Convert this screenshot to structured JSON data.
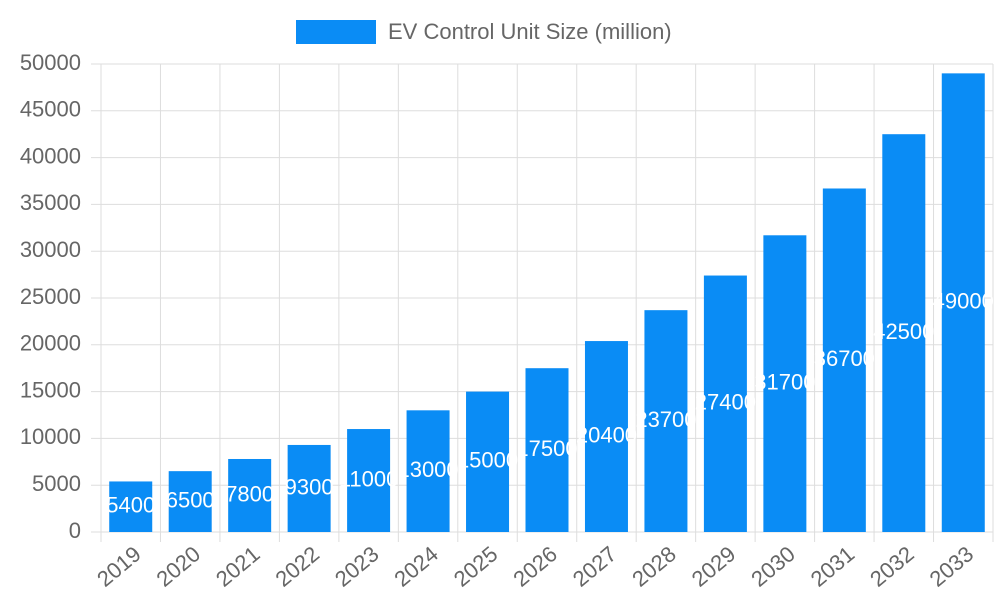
{
  "chart_data": {
    "type": "bar",
    "categories": [
      "2019",
      "2020",
      "2021",
      "2022",
      "2023",
      "2024",
      "2025",
      "2026",
      "2027",
      "2028",
      "2029",
      "2030",
      "2031",
      "2032",
      "2033"
    ],
    "series": [
      {
        "name": "EV Control Unit Size (million)",
        "color": "#0a8cf5",
        "values": [
          5400,
          6500,
          7800,
          9300,
          11000,
          13000,
          15000,
          17500,
          20400,
          23700,
          27400,
          31700,
          36700,
          42500,
          49000
        ]
      }
    ],
    "ylim": [
      0,
      50000
    ],
    "yticks": [
      0,
      5000,
      10000,
      15000,
      20000,
      25000,
      30000,
      35000,
      40000,
      45000,
      50000
    ],
    "grid": true,
    "legend": "top"
  }
}
